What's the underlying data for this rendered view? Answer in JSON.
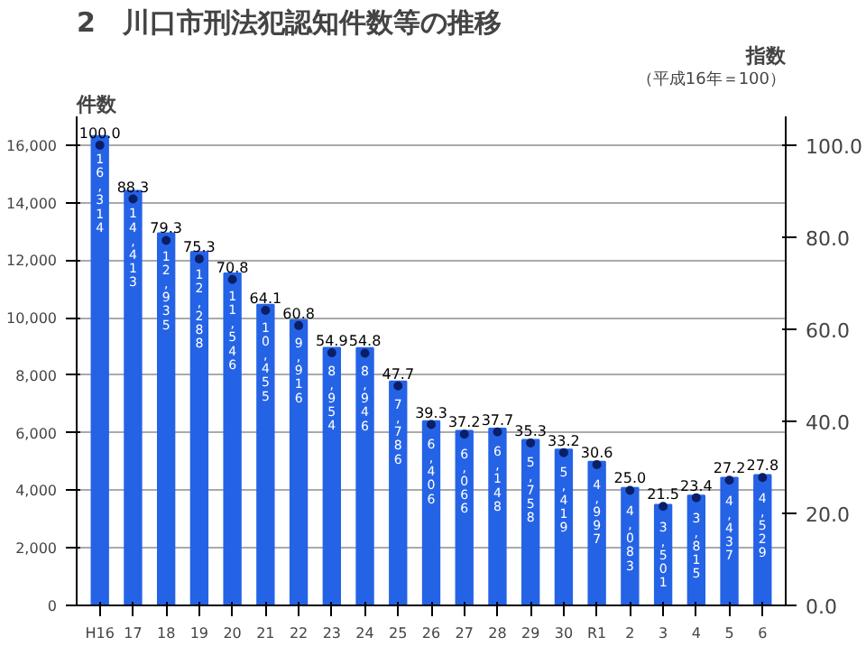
{
  "chart_data": {
    "type": "bar",
    "title": "2　川口市刑法犯認知件数等の推移",
    "ylabel": "件数",
    "y2label": "指数",
    "annotations": [
      "（平成16年＝100）"
    ],
    "categories": [
      "H16",
      "17",
      "18",
      "19",
      "20",
      "21",
      "22",
      "23",
      "24",
      "25",
      "26",
      "27",
      "28",
      "29",
      "30",
      "R1",
      "2",
      "3",
      "4",
      "5",
      "6"
    ],
    "series": [
      {
        "color": "#2563e6",
        "values": [
          16314,
          14413,
          12935,
          12288,
          11546,
          10455,
          9916,
          8954,
          8946,
          7786,
          6406,
          6066,
          6148,
          5758,
          5419,
          4997,
          4083,
          3501,
          3815,
          4437,
          4529
        ],
        "value_labels": [
          "16,314",
          "14,413",
          "12,935",
          "12,288",
          "11,546",
          "10,455",
          "9,916",
          "8,954",
          "8,946",
          "7,786",
          "6,406",
          "6,066",
          "6,148",
          "5,758",
          "5,419",
          "4,997",
          "4,083",
          "3,501",
          "3,815",
          "4,437",
          "4,529"
        ]
      },
      {
        "type": "scatter",
        "axis": "y2",
        "marker": "circle",
        "color": "#0b1f66",
        "values": [
          100.0,
          88.3,
          79.3,
          75.3,
          70.8,
          64.1,
          60.8,
          54.9,
          54.8,
          47.7,
          39.3,
          37.2,
          37.7,
          35.3,
          33.2,
          30.6,
          25.0,
          21.5,
          23.4,
          27.2,
          27.8
        ],
        "value_labels": [
          "100.0",
          "88.3",
          "79.3",
          "75.3",
          "70.8",
          "64.1",
          "60.8",
          "54.9",
          "54.8",
          "47.7",
          "39.3",
          "37.2",
          "37.7",
          "35.3",
          "33.2",
          "30.6",
          "25.0",
          "21.5",
          "23.4",
          "27.2",
          "27.8"
        ]
      }
    ],
    "ylim": [
      0,
      17000
    ],
    "yticks": [
      0,
      {
        "value": 2000,
        "label": "2,000"
      },
      {
        "value": 4000,
        "label": "4,000"
      },
      {
        "value": 6000,
        "label": "6,000"
      },
      {
        "value": 8000,
        "label": "8,000"
      },
      {
        "value": 10000,
        "label": "10,000"
      },
      {
        "value": 12000,
        "label": "12,000"
      },
      {
        "value": 14000,
        "label": "14,000"
      },
      {
        "value": 16000,
        "label": "16,000"
      }
    ],
    "y2lim": [
      0,
      106.25
    ],
    "y2ticks": [
      {
        "value": 0,
        "label": "0.0"
      },
      {
        "value": 20,
        "label": "20.0"
      },
      {
        "value": 40,
        "label": "40.0"
      },
      {
        "value": 60,
        "label": "60.0"
      },
      {
        "value": 80,
        "label": "80.0"
      },
      {
        "value": 100,
        "label": "100.0"
      }
    ],
    "grid": "y"
  }
}
